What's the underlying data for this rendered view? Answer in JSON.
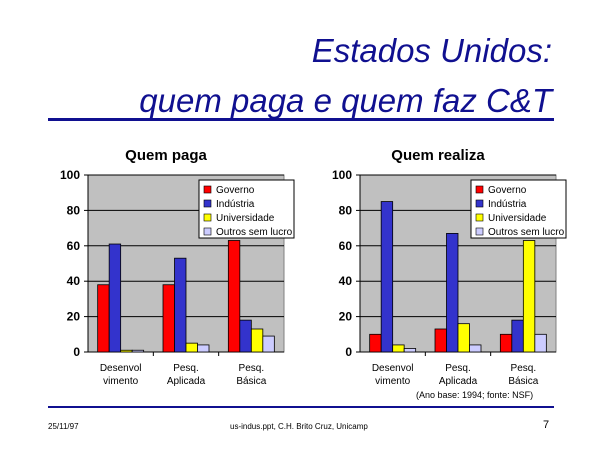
{
  "slide": {
    "title_line1": "Estados Unidos:",
    "title_line2": "quem paga e quem faz C&T",
    "caption": "(Ano base: 1994; fonte: NSF)",
    "footer_date": "25/11/97",
    "footer_file": "us-indus.ppt, C.H. Brito Cruz, Unicamp",
    "page_number": "7",
    "accent_color": "#101090"
  },
  "chart_data": [
    {
      "type": "bar",
      "title": "Quem paga",
      "categories": [
        [
          "Desenvol",
          "vimento"
        ],
        [
          "Pesq.",
          "Aplicada"
        ],
        [
          "Pesq.",
          "Básica"
        ]
      ],
      "ylim": [
        0,
        100
      ],
      "yticks": [
        0,
        20,
        40,
        60,
        80,
        100
      ],
      "grid": true,
      "legend_position": "top-right",
      "series": [
        {
          "name": "Governo",
          "color": "#ff0000",
          "values": [
            38,
            38,
            63
          ]
        },
        {
          "name": "Indústria",
          "color": "#3333cc",
          "values": [
            61,
            53,
            18
          ]
        },
        {
          "name": "Universidade",
          "color": "#ffff00",
          "values": [
            1,
            5,
            13
          ]
        },
        {
          "name": "Outros sem lucro",
          "color": "#ccccff",
          "values": [
            1,
            4,
            9
          ]
        }
      ]
    },
    {
      "type": "bar",
      "title": "Quem realiza",
      "categories": [
        [
          "Desenvol",
          "vimento"
        ],
        [
          "Pesq.",
          "Aplicada"
        ],
        [
          "Pesq.",
          "Básica"
        ]
      ],
      "ylim": [
        0,
        100
      ],
      "yticks": [
        0,
        20,
        40,
        60,
        80,
        100
      ],
      "grid": true,
      "legend_position": "top-right",
      "series": [
        {
          "name": "Governo",
          "color": "#ff0000",
          "values": [
            10,
            13,
            10
          ]
        },
        {
          "name": "Indústria",
          "color": "#3333cc",
          "values": [
            85,
            67,
            18
          ]
        },
        {
          "name": "Universidade",
          "color": "#ffff00",
          "values": [
            4,
            16,
            63
          ]
        },
        {
          "name": "Outros sem lucro",
          "color": "#ccccff",
          "values": [
            2,
            4,
            10
          ]
        }
      ]
    }
  ]
}
